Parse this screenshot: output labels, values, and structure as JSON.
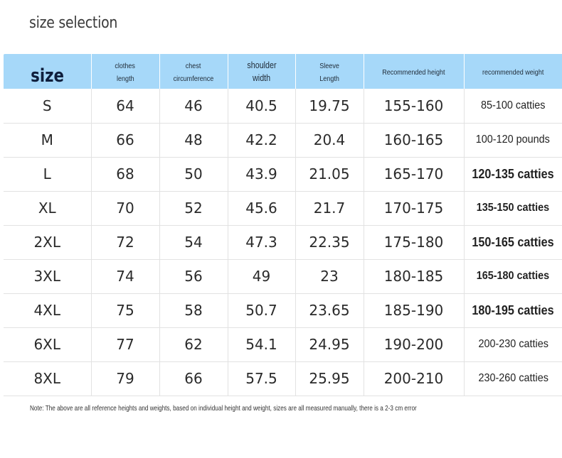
{
  "title": "size selection",
  "headers": [
    [
      "size"
    ],
    [
      "clothes",
      "length"
    ],
    [
      "chest",
      "circumference"
    ],
    [
      "shoulder",
      "width"
    ],
    [
      "Sleeve",
      "Length"
    ],
    [
      "Recommended height"
    ],
    [
      "recommended weight"
    ]
  ],
  "rows": [
    [
      "S",
      "64",
      "46",
      "40.5",
      "19.75",
      "155-160",
      "85-100 catties"
    ],
    [
      "M",
      "66",
      "48",
      "42.2",
      "20.4",
      "160-165",
      "100-120 pounds"
    ],
    [
      "L",
      "68",
      "50",
      "43.9",
      "21.05",
      "165-170",
      "120-135 catties"
    ],
    [
      "XL",
      "70",
      "52",
      "45.6",
      "21.7",
      "170-175",
      "135-150 catties"
    ],
    [
      "2XL",
      "72",
      "54",
      "47.3",
      "22.35",
      "175-180",
      "150-165 catties"
    ],
    [
      "3XL",
      "74",
      "56",
      "49",
      "23",
      "180-185",
      "165-180 catties"
    ],
    [
      "4XL",
      "75",
      "58",
      "50.7",
      "23.65",
      "185-190",
      "180-195 catties"
    ],
    [
      "6XL",
      "77",
      "62",
      "54.1",
      "24.95",
      "190-200",
      "200-230 catties"
    ],
    [
      "8XL",
      "79",
      "66",
      "57.5",
      "25.95",
      "200-210",
      "230-260 catties"
    ]
  ],
  "note": "Note: The above are all reference heights and weights, based on individual height and weight, sizes are all measured manually, there is a 2-3 cm error",
  "colors": {
    "header_bg": "#a6d8f9",
    "grid_line": "#e2e2e2"
  }
}
